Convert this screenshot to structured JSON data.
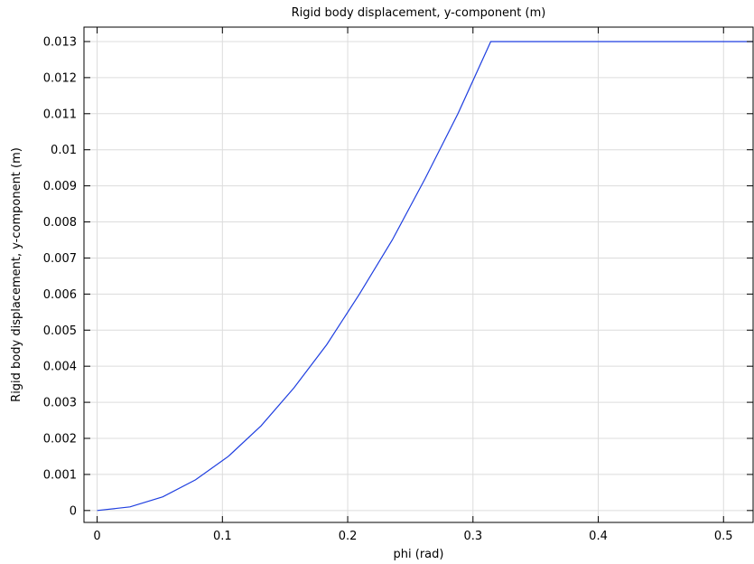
{
  "chart_data": {
    "type": "line",
    "title": "Rigid body displacement, y-component (m)",
    "xlabel": "phi (rad)",
    "ylabel": "Rigid body displacement, y-component (m)",
    "xlim": [
      -0.0105,
      0.5236
    ],
    "ylim": [
      -0.00033,
      0.0134
    ],
    "xticks": [
      0,
      0.1,
      0.2,
      0.3,
      0.4,
      0.5
    ],
    "xtick_labels": [
      "0",
      "0.1",
      "0.2",
      "0.3",
      "0.4",
      "0.5"
    ],
    "yticks": [
      0,
      0.001,
      0.002,
      0.003,
      0.004,
      0.005,
      0.006,
      0.007,
      0.008,
      0.009,
      0.01,
      0.011,
      0.012,
      0.013
    ],
    "ytick_labels": [
      "0",
      "0.001",
      "0.002",
      "0.003",
      "0.004",
      "0.005",
      "0.006",
      "0.007",
      "0.008",
      "0.009",
      "0.01",
      "0.011",
      "0.012",
      "0.013"
    ],
    "grid": true,
    "series": [
      {
        "color": "#1f3fe0",
        "x": [
          0,
          0.0262,
          0.0524,
          0.0785,
          0.1047,
          0.1309,
          0.1571,
          0.1833,
          0.2094,
          0.2356,
          0.2618,
          0.288,
          0.3142,
          0.5236
        ],
        "y": [
          0,
          0.0001,
          0.00038,
          0.00085,
          0.0015,
          0.00235,
          0.0034,
          0.0046,
          0.006,
          0.0075,
          0.0092,
          0.011,
          0.013,
          0.013
        ]
      }
    ]
  }
}
